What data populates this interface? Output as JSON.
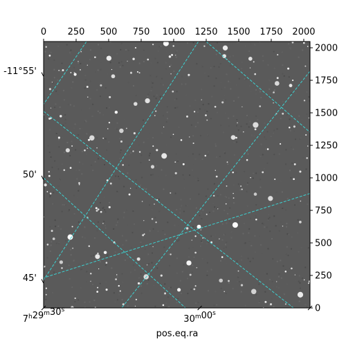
{
  "chart_data": {
    "type": "image",
    "xlabel": "pos.eq.ra",
    "ylabel": "",
    "pixel_axis_x": {
      "range": [
        0,
        2048
      ],
      "ticks": [
        0,
        250,
        500,
        750,
        1000,
        1250,
        1500,
        1750,
        2000
      ]
    },
    "pixel_axis_y": {
      "range": [
        0,
        2048
      ],
      "ticks": [
        0,
        250,
        500,
        750,
        1000,
        1250,
        1500,
        1750,
        2000
      ]
    },
    "ra_tick_labels": [
      {
        "h": "7",
        "m": "29",
        "s": "30",
        "pixel": 0
      },
      {
        "h": "",
        "m": "30",
        "s": "00",
        "pixel": 1200
      }
    ],
    "dec_tick_labels": [
      {
        "text": "-11°55'",
        "pixel": 1795
      },
      {
        "text": "50'",
        "pixel": 1000
      },
      {
        "text": "45'",
        "pixel": 205
      }
    ],
    "grid": {
      "shown": true,
      "color": "#3cd2d2",
      "style": "dashed"
    },
    "colormap": "gray",
    "seed": 7
  }
}
